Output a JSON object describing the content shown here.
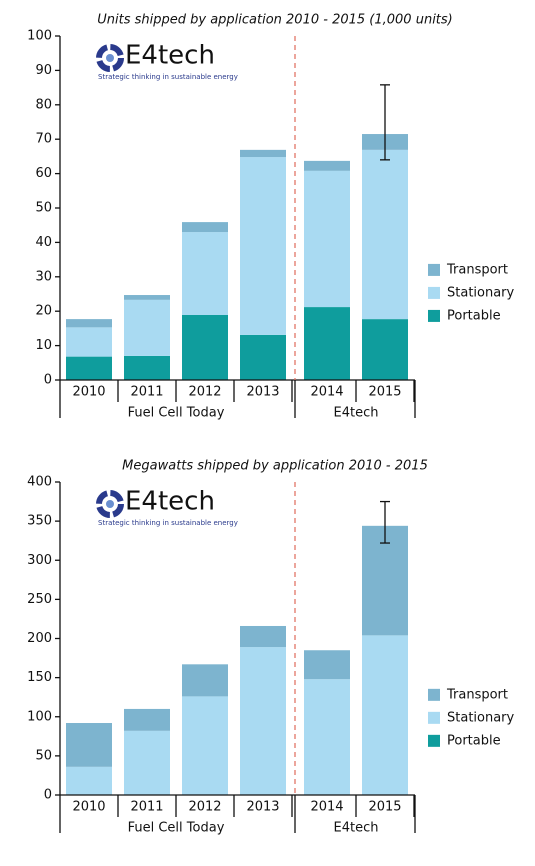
{
  "chart_data": [
    {
      "type": "bar",
      "stacked": true,
      "title": "Units shipped by application 2010 - 2015 (1,000 units)",
      "logo": {
        "name": "E4tech",
        "tagline": "Strategic thinking in sustainable energy"
      },
      "categories": [
        "2010",
        "2011",
        "2012",
        "2013",
        "2014",
        "2015"
      ],
      "x_groups": [
        "Fuel Cell Today",
        "Fuel Cell Today",
        "Fuel Cell Today",
        "Fuel Cell Today",
        "E4tech",
        "E4tech"
      ],
      "ylim": [
        0,
        100
      ],
      "yticks": [
        0,
        10,
        20,
        30,
        40,
        50,
        60,
        70,
        80,
        90,
        100
      ],
      "series": [
        {
          "name": "Transport",
          "color": "#7db4cf",
          "values": [
            2.4,
            1.4,
            2.9,
            2.1,
            2.9,
            4.6
          ],
          "error_range": [
            null,
            null,
            null,
            null,
            null,
            [
              64,
              85.8
            ]
          ]
        },
        {
          "name": "Stationary",
          "color": "#a9daf2",
          "values": [
            8.5,
            16.3,
            24.1,
            51.7,
            39.6,
            49.2
          ]
        },
        {
          "name": "Portable",
          "color": "#0f9d9d",
          "values": [
            6.8,
            7.0,
            18.9,
            13.1,
            21.2,
            17.7
          ]
        }
      ]
    },
    {
      "type": "bar",
      "stacked": true,
      "title": "Megawatts shipped by application 2010 - 2015",
      "logo": {
        "name": "E4tech",
        "tagline": "Strategic thinking in sustainable energy"
      },
      "categories": [
        "2010",
        "2011",
        "2012",
        "2013",
        "2014",
        "2015"
      ],
      "x_groups": [
        "Fuel Cell Today",
        "Fuel Cell Today",
        "Fuel Cell Today",
        "Fuel Cell Today",
        "E4tech",
        "E4tech"
      ],
      "ylim": [
        0,
        400
      ],
      "yticks": [
        0,
        50,
        100,
        150,
        200,
        250,
        300,
        350,
        400
      ],
      "series": [
        {
          "name": "Transport",
          "color": "#7db4cf",
          "values": [
            56,
            28,
            41,
            27,
            37,
            140
          ],
          "error_range": [
            null,
            null,
            null,
            null,
            null,
            [
              322,
              375
            ]
          ]
        },
        {
          "name": "Stationary",
          "color": "#a9daf2",
          "values": [
            36,
            82,
            126,
            189,
            148,
            204
          ]
        },
        {
          "name": "Portable",
          "color": "#0f9d9d",
          "values": [
            0,
            0,
            0,
            0,
            0,
            0
          ]
        }
      ]
    }
  ]
}
